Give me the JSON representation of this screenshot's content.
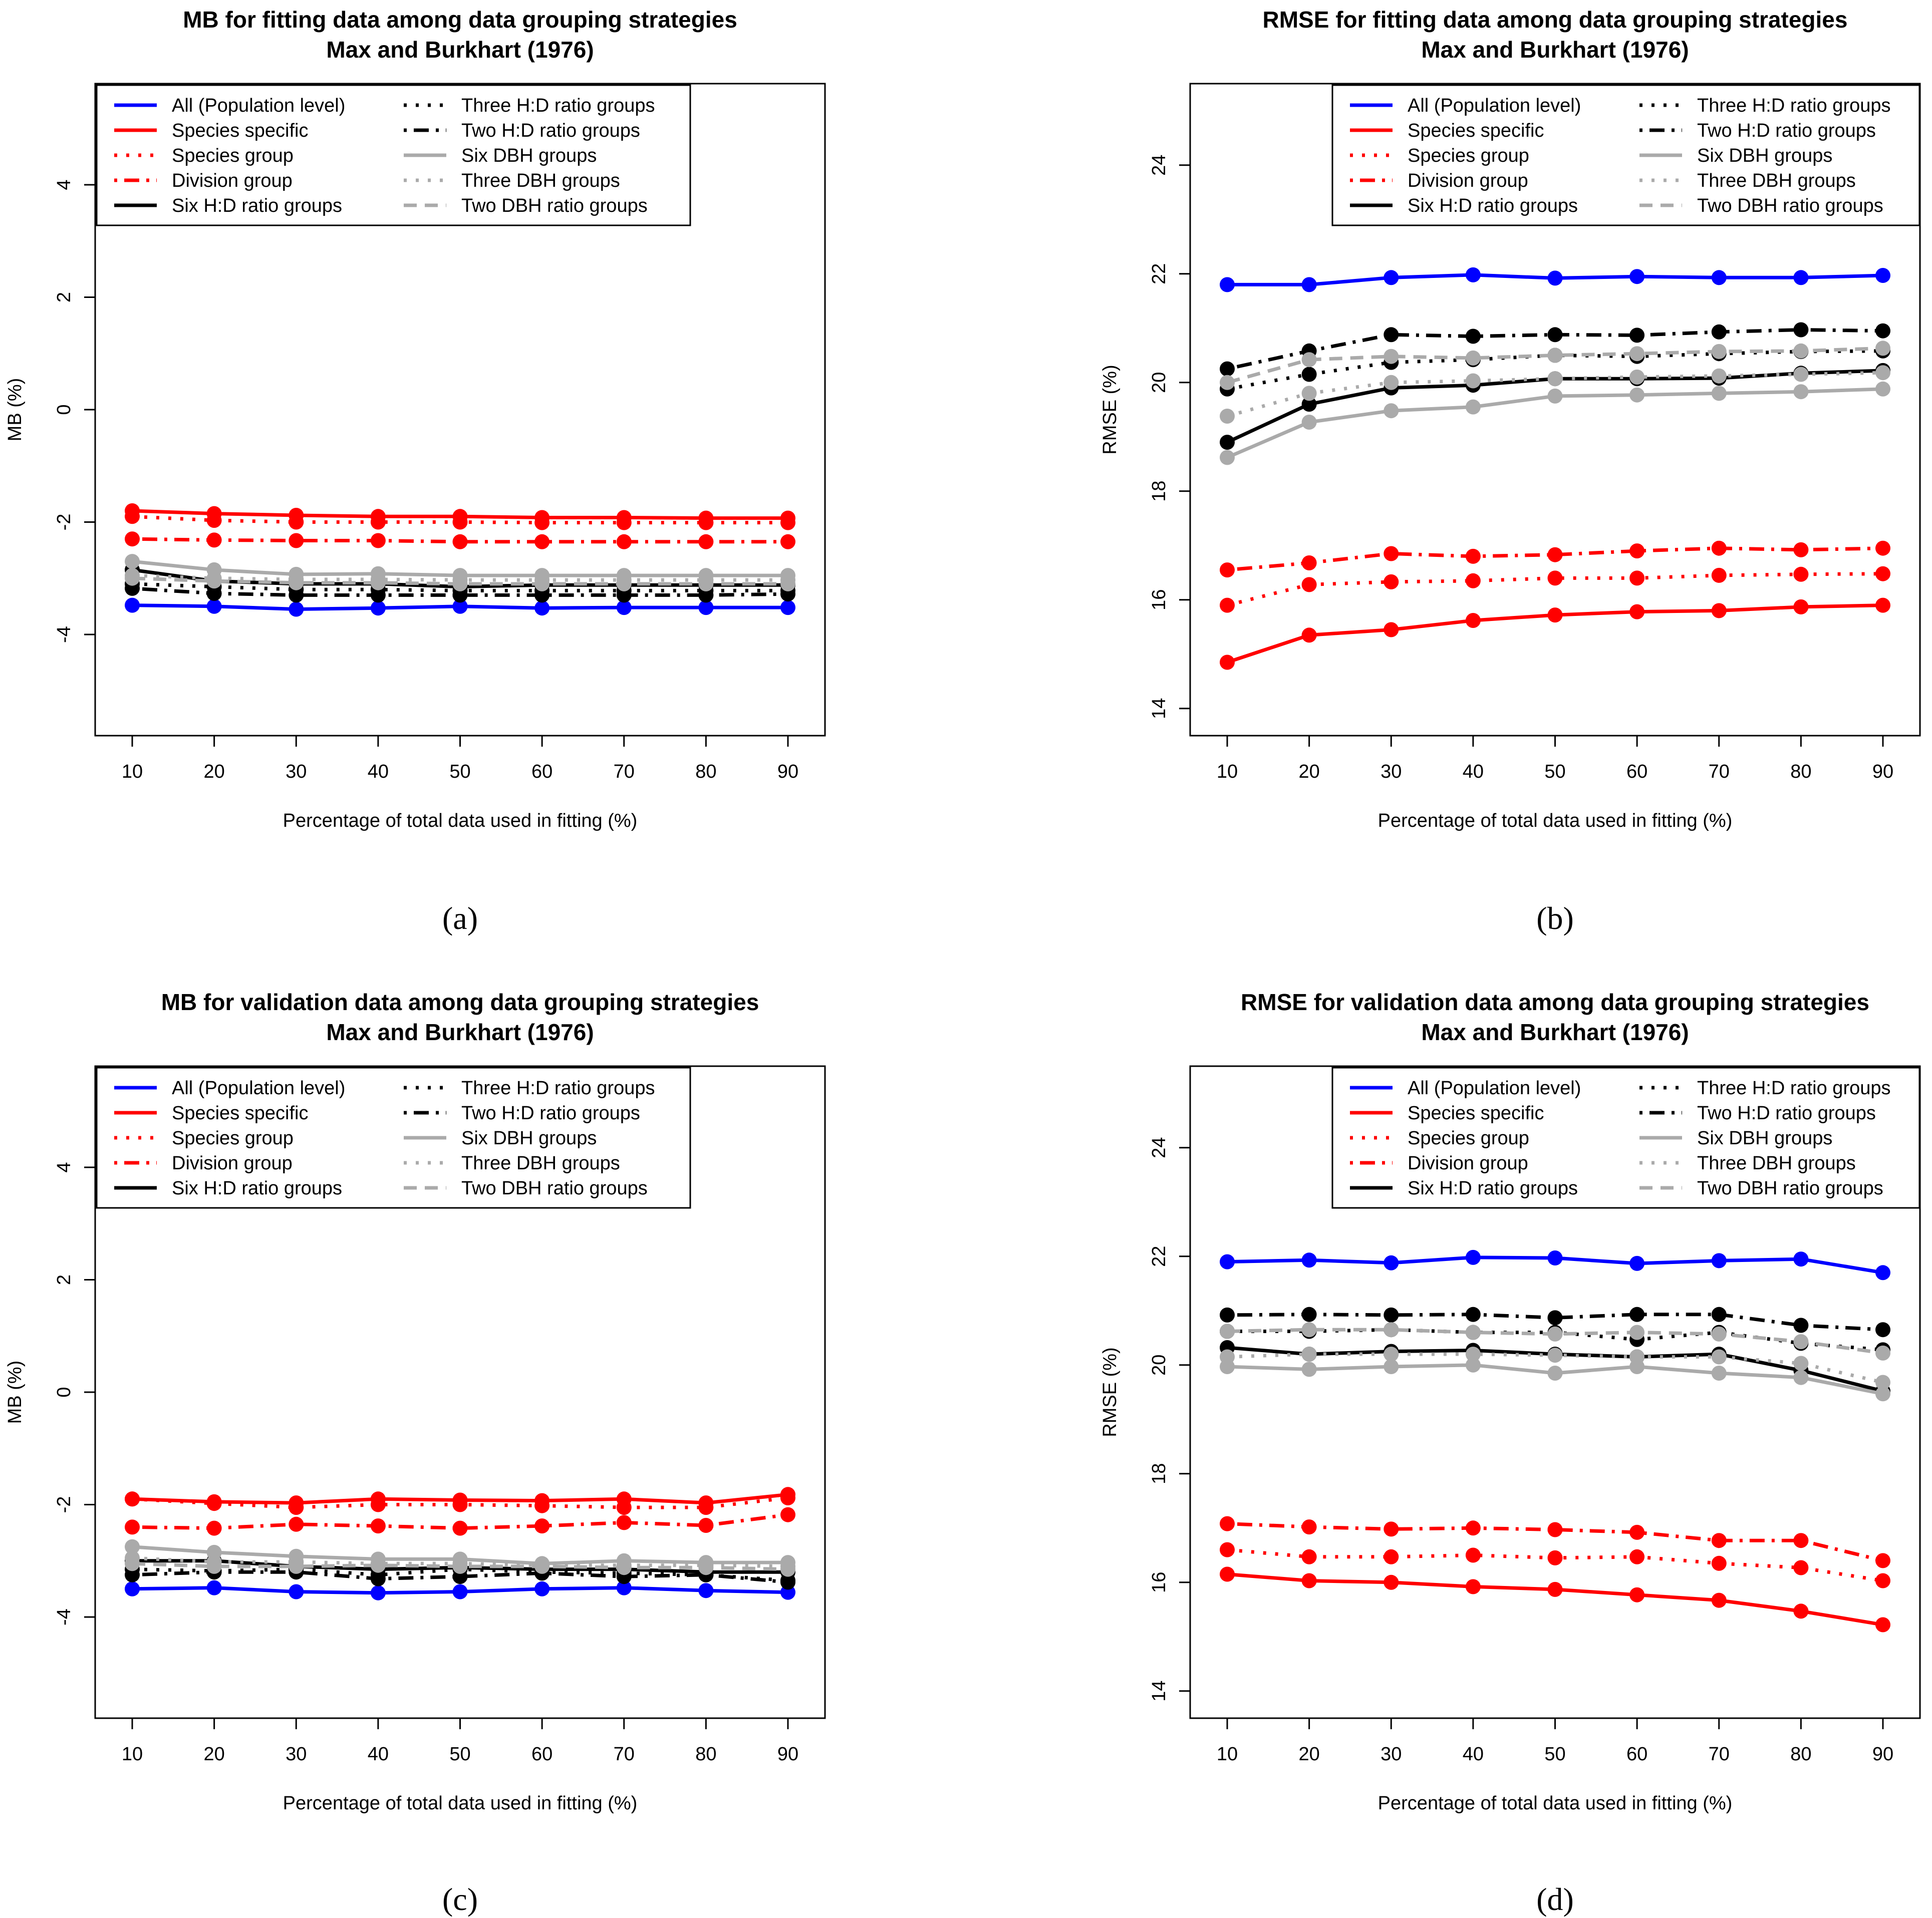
{
  "chart_data": [
    {
      "type": "line",
      "panel": "a",
      "caption": "(a)",
      "title": "MB for fitting data among data grouping strategies",
      "subtitle": "Max and Burkhart (1976)",
      "xlabel": "Percentage of total data used in fitting (%)",
      "ylabel": "MB (%)",
      "xlim": [
        10,
        90
      ],
      "ylim": [
        -5.8,
        5.8
      ],
      "x": [
        10,
        20,
        30,
        40,
        50,
        60,
        70,
        80,
        90
      ],
      "x_ticks": [
        "10",
        "20",
        "30",
        "40",
        "50",
        "60",
        "70",
        "80",
        "90"
      ],
      "y_ticks": [
        "-4",
        "-2",
        "0",
        "2",
        "4"
      ],
      "legend_position": "top",
      "series": [
        {
          "name": "All (Population level)",
          "color": "#0000ff",
          "dash": "solid",
          "values": [
            -3.48,
            -3.5,
            -3.55,
            -3.53,
            -3.5,
            -3.53,
            -3.52,
            -3.52,
            -3.52
          ]
        },
        {
          "name": "Species specific",
          "color": "#ff0000",
          "dash": "solid",
          "values": [
            -1.8,
            -1.85,
            -1.88,
            -1.9,
            -1.9,
            -1.92,
            -1.92,
            -1.93,
            -1.93
          ]
        },
        {
          "name": "Species group",
          "color": "#ff0000",
          "dash": "dotted",
          "values": [
            -1.9,
            -1.97,
            -2.0,
            -2.0,
            -2.0,
            -2.01,
            -2.01,
            -2.01,
            -2.01
          ]
        },
        {
          "name": "Division group",
          "color": "#ff0000",
          "dash": "dashdot",
          "values": [
            -2.3,
            -2.32,
            -2.33,
            -2.33,
            -2.35,
            -2.35,
            -2.35,
            -2.35,
            -2.35
          ]
        },
        {
          "name": "Six H:D ratio groups",
          "color": "#000000",
          "dash": "solid",
          "values": [
            -2.85,
            -3.05,
            -3.1,
            -3.1,
            -3.15,
            -3.12,
            -3.12,
            -3.12,
            -3.12
          ]
        },
        {
          "name": "Three H:D ratio groups",
          "color": "#000000",
          "dash": "dotted",
          "values": [
            -3.1,
            -3.15,
            -3.2,
            -3.2,
            -3.22,
            -3.22,
            -3.22,
            -3.22,
            -3.22
          ]
        },
        {
          "name": "Two H:D ratio groups",
          "color": "#000000",
          "dash": "dashdot",
          "values": [
            -3.18,
            -3.27,
            -3.3,
            -3.3,
            -3.3,
            -3.3,
            -3.3,
            -3.3,
            -3.28
          ]
        },
        {
          "name": "Six DBH groups",
          "color": "#aaaaaa",
          "dash": "solid",
          "values": [
            -2.7,
            -2.85,
            -2.93,
            -2.92,
            -2.95,
            -2.95,
            -2.95,
            -2.95,
            -2.95
          ]
        },
        {
          "name": "Three DBH groups",
          "color": "#aaaaaa",
          "dash": "dotted",
          "values": [
            -2.95,
            -3.0,
            -3.02,
            -3.02,
            -3.03,
            -3.03,
            -3.03,
            -3.03,
            -3.03
          ]
        },
        {
          "name": "Two DBH ratio groups",
          "color": "#aaaaaa",
          "dash": "dashed",
          "values": [
            -3.0,
            -3.05,
            -3.08,
            -3.08,
            -3.1,
            -3.1,
            -3.1,
            -3.1,
            -3.1
          ]
        }
      ]
    },
    {
      "type": "line",
      "panel": "b",
      "caption": "(b)",
      "title": "RMSE for fitting data among data grouping strategies",
      "subtitle": "Max and Burkhart (1976)",
      "xlabel": "Percentage of total data used in fitting (%)",
      "ylabel": "RMSE (%)",
      "xlim": [
        10,
        90
      ],
      "ylim": [
        13.5,
        25.5
      ],
      "x": [
        10,
        20,
        30,
        40,
        50,
        60,
        70,
        80,
        90
      ],
      "x_ticks": [
        "10",
        "20",
        "30",
        "40",
        "50",
        "60",
        "70",
        "80",
        "90"
      ],
      "y_ticks": [
        "14",
        "16",
        "18",
        "20",
        "22",
        "24"
      ],
      "legend_position": "top-right",
      "series": [
        {
          "name": "All (Population level)",
          "color": "#0000ff",
          "dash": "solid",
          "values": [
            21.8,
            21.8,
            21.93,
            21.98,
            21.92,
            21.95,
            21.93,
            21.93,
            21.97
          ]
        },
        {
          "name": "Species specific",
          "color": "#ff0000",
          "dash": "solid",
          "values": [
            14.85,
            15.35,
            15.45,
            15.62,
            15.72,
            15.78,
            15.8,
            15.87,
            15.9
          ]
        },
        {
          "name": "Species group",
          "color": "#ff0000",
          "dash": "dotted",
          "values": [
            15.9,
            16.28,
            16.33,
            16.35,
            16.4,
            16.4,
            16.45,
            16.47,
            16.48
          ]
        },
        {
          "name": "Division group",
          "color": "#ff0000",
          "dash": "dashdot",
          "values": [
            16.55,
            16.68,
            16.85,
            16.8,
            16.83,
            16.9,
            16.95,
            16.92,
            16.95
          ]
        },
        {
          "name": "Six H:D ratio groups",
          "color": "#000000",
          "dash": "solid",
          "values": [
            18.9,
            19.6,
            19.9,
            19.95,
            20.07,
            20.07,
            20.08,
            20.17,
            20.22
          ]
        },
        {
          "name": "Three H:D ratio groups",
          "color": "#000000",
          "dash": "dotted",
          "values": [
            19.88,
            20.15,
            20.37,
            20.42,
            20.5,
            20.48,
            20.53,
            20.57,
            20.58
          ]
        },
        {
          "name": "Two H:D ratio groups",
          "color": "#000000",
          "dash": "dashdot",
          "values": [
            20.25,
            20.58,
            20.88,
            20.85,
            20.88,
            20.87,
            20.93,
            20.97,
            20.95
          ]
        },
        {
          "name": "Six DBH groups",
          "color": "#aaaaaa",
          "dash": "solid",
          "values": [
            18.62,
            19.27,
            19.48,
            19.55,
            19.75,
            19.77,
            19.8,
            19.83,
            19.88
          ]
        },
        {
          "name": "Three DBH groups",
          "color": "#aaaaaa",
          "dash": "dotted",
          "values": [
            19.38,
            19.8,
            20.0,
            20.03,
            20.07,
            20.1,
            20.12,
            20.15,
            20.18
          ]
        },
        {
          "name": "Two DBH ratio groups",
          "color": "#aaaaaa",
          "dash": "dashed",
          "values": [
            20.0,
            20.42,
            20.48,
            20.45,
            20.5,
            20.53,
            20.57,
            20.58,
            20.63
          ]
        }
      ]
    },
    {
      "type": "line",
      "panel": "c",
      "caption": "(c)",
      "title": "MB for validation data among data grouping strategies",
      "subtitle": "Max and Burkhart (1976)",
      "xlabel": "Percentage of total data used in fitting (%)",
      "ylabel": "MB (%)",
      "xlim": [
        10,
        90
      ],
      "ylim": [
        -5.8,
        5.8
      ],
      "x": [
        10,
        20,
        30,
        40,
        50,
        60,
        70,
        80,
        90
      ],
      "x_ticks": [
        "10",
        "20",
        "30",
        "40",
        "50",
        "60",
        "70",
        "80",
        "90"
      ],
      "y_ticks": [
        "-4",
        "-2",
        "0",
        "2",
        "4"
      ],
      "legend_position": "top",
      "series": [
        {
          "name": "All (Population level)",
          "color": "#0000ff",
          "dash": "solid",
          "values": [
            -3.5,
            -3.48,
            -3.55,
            -3.57,
            -3.55,
            -3.5,
            -3.48,
            -3.53,
            -3.56
          ]
        },
        {
          "name": "Species specific",
          "color": "#ff0000",
          "dash": "solid",
          "values": [
            -1.9,
            -1.95,
            -1.97,
            -1.9,
            -1.92,
            -1.93,
            -1.9,
            -1.97,
            -1.82
          ]
        },
        {
          "name": "Species group",
          "color": "#ff0000",
          "dash": "dotted",
          "values": [
            -1.9,
            -1.98,
            -2.05,
            -2.0,
            -2.0,
            -2.02,
            -2.05,
            -2.05,
            -1.88
          ]
        },
        {
          "name": "Division group",
          "color": "#ff0000",
          "dash": "dashdot",
          "values": [
            -2.4,
            -2.42,
            -2.35,
            -2.38,
            -2.42,
            -2.38,
            -2.32,
            -2.37,
            -2.18
          ]
        },
        {
          "name": "Six H:D ratio groups",
          "color": "#000000",
          "dash": "solid",
          "values": [
            -3.0,
            -3.0,
            -3.1,
            -3.15,
            -3.12,
            -3.15,
            -3.15,
            -3.2,
            -3.2
          ]
        },
        {
          "name": "Three H:D ratio groups",
          "color": "#000000",
          "dash": "dotted",
          "values": [
            -3.15,
            -3.18,
            -3.15,
            -3.25,
            -3.15,
            -3.2,
            -3.22,
            -3.25,
            -3.35
          ]
        },
        {
          "name": "Two H:D ratio groups",
          "color": "#000000",
          "dash": "dashdot",
          "values": [
            -3.25,
            -3.2,
            -3.2,
            -3.32,
            -3.28,
            -3.22,
            -3.28,
            -3.25,
            -3.38
          ]
        },
        {
          "name": "Six DBH groups",
          "color": "#aaaaaa",
          "dash": "solid",
          "values": [
            -2.75,
            -2.85,
            -2.92,
            -2.97,
            -2.97,
            -3.05,
            -3.0,
            -3.03,
            -3.03
          ]
        },
        {
          "name": "Three DBH groups",
          "color": "#aaaaaa",
          "dash": "dotted",
          "values": [
            -2.95,
            -3.02,
            -3.02,
            -3.05,
            -3.05,
            -3.08,
            -3.08,
            -3.08,
            -3.1
          ]
        },
        {
          "name": "Two DBH ratio groups",
          "color": "#aaaaaa",
          "dash": "dashed",
          "values": [
            -3.05,
            -3.1,
            -3.1,
            -3.08,
            -3.1,
            -3.1,
            -3.12,
            -3.12,
            -3.15
          ]
        }
      ]
    },
    {
      "type": "line",
      "panel": "d",
      "caption": "(d)",
      "title": "RMSE for validation data among data grouping strategies",
      "subtitle": "Max and Burkhart (1976)",
      "xlabel": "Percentage of total data used in fitting (%)",
      "ylabel": "RMSE (%)",
      "xlim": [
        10,
        90
      ],
      "ylim": [
        13.5,
        25.5
      ],
      "x": [
        10,
        20,
        30,
        40,
        50,
        60,
        70,
        80,
        90
      ],
      "x_ticks": [
        "10",
        "20",
        "30",
        "40",
        "50",
        "60",
        "70",
        "80",
        "90"
      ],
      "y_ticks": [
        "14",
        "16",
        "18",
        "20",
        "22",
        "24"
      ],
      "legend_position": "top-right",
      "series": [
        {
          "name": "All (Population level)",
          "color": "#0000ff",
          "dash": "solid",
          "values": [
            21.9,
            21.93,
            21.88,
            21.98,
            21.97,
            21.87,
            21.92,
            21.95,
            21.7
          ]
        },
        {
          "name": "Species specific",
          "color": "#ff0000",
          "dash": "solid",
          "values": [
            16.15,
            16.03,
            16.0,
            15.92,
            15.87,
            15.77,
            15.67,
            15.47,
            15.22
          ]
        },
        {
          "name": "Species group",
          "color": "#ff0000",
          "dash": "dotted",
          "values": [
            16.6,
            16.47,
            16.47,
            16.5,
            16.45,
            16.47,
            16.35,
            16.27,
            16.03
          ]
        },
        {
          "name": "Division group",
          "color": "#ff0000",
          "dash": "dashdot",
          "values": [
            17.08,
            17.02,
            16.98,
            17.0,
            16.97,
            16.92,
            16.77,
            16.77,
            16.4
          ]
        },
        {
          "name": "Six H:D ratio groups",
          "color": "#000000",
          "dash": "solid",
          "values": [
            20.32,
            20.2,
            20.25,
            20.27,
            20.2,
            20.15,
            20.2,
            19.9,
            19.52
          ]
        },
        {
          "name": "Three H:D ratio groups",
          "color": "#000000",
          "dash": "dotted",
          "values": [
            20.62,
            20.62,
            20.65,
            20.6,
            20.6,
            20.47,
            20.6,
            20.4,
            20.28
          ]
        },
        {
          "name": "Two H:D ratio groups",
          "color": "#000000",
          "dash": "dashdot",
          "values": [
            20.92,
            20.93,
            20.92,
            20.93,
            20.87,
            20.93,
            20.93,
            20.73,
            20.65
          ]
        },
        {
          "name": "Six DBH groups",
          "color": "#aaaaaa",
          "dash": "solid",
          "values": [
            19.97,
            19.92,
            19.97,
            20.0,
            19.85,
            19.97,
            19.85,
            19.77,
            19.47
          ]
        },
        {
          "name": "Three DBH groups",
          "color": "#aaaaaa",
          "dash": "dotted",
          "values": [
            20.15,
            20.2,
            20.2,
            20.2,
            20.18,
            20.15,
            20.15,
            20.03,
            19.68
          ]
        },
        {
          "name": "Two DBH ratio groups",
          "color": "#aaaaaa",
          "dash": "dashed",
          "values": [
            20.62,
            20.65,
            20.65,
            20.6,
            20.57,
            20.6,
            20.57,
            20.43,
            20.22
          ]
        }
      ]
    }
  ]
}
